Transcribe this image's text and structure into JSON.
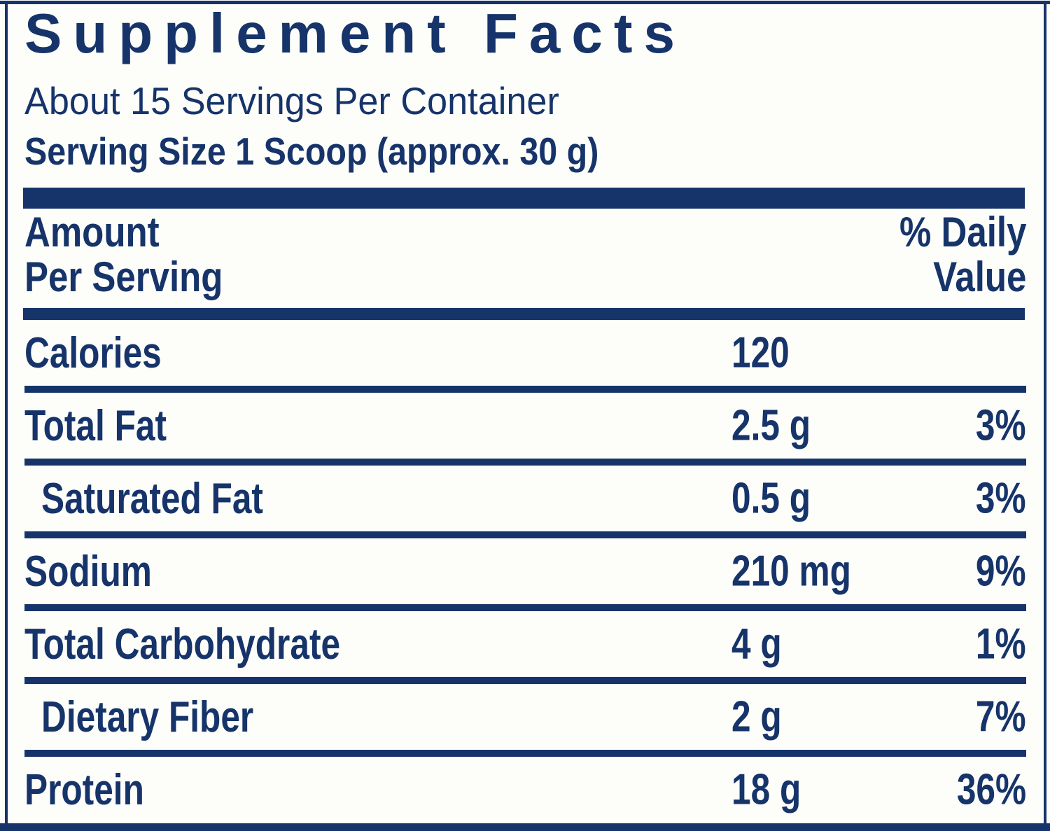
{
  "label": {
    "title": "Supplement Facts",
    "servings_per_container": "About 15 Servings Per Container",
    "serving_size": "Serving Size 1 Scoop (approx. 30 g)",
    "header": {
      "amount_line1": "Amount",
      "amount_line2": "Per Serving",
      "dv_line1": "% Daily",
      "dv_line2": "Value"
    },
    "colors": {
      "navy": "#16346a",
      "background": "#fdfdfa"
    }
  },
  "rows": [
    {
      "name": "Calories",
      "amount": "120",
      "dv": ""
    },
    {
      "name": "Total Fat",
      "amount": "2.5 g",
      "dv": "3%"
    },
    {
      "name": "Saturated Fat",
      "amount": "0.5 g",
      "dv": "3%"
    },
    {
      "name": "Sodium",
      "amount": "210 mg",
      "dv": "9%"
    },
    {
      "name": "Total Carbohydrate",
      "amount": "4 g",
      "dv": "1%"
    },
    {
      "name": "Dietary Fiber",
      "amount": "2 g",
      "dv": "7%"
    },
    {
      "name": "Protein",
      "amount": "18 g",
      "dv": "36%"
    }
  ]
}
